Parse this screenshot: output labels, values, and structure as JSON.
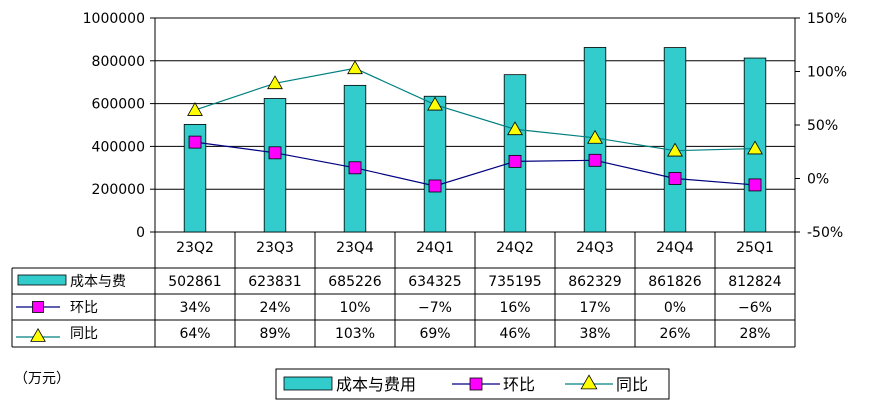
{
  "chart_data": {
    "type": "bar+line",
    "categories": [
      "23Q2",
      "23Q3",
      "23Q4",
      "24Q1",
      "24Q2",
      "24Q3",
      "24Q4",
      "25Q1"
    ],
    "unit_label": "（万元）",
    "y_left": {
      "min": 0,
      "max": 1000000,
      "step": 200000,
      "ticks": [
        "0",
        "200000",
        "400000",
        "600000",
        "800000",
        "1000000"
      ]
    },
    "y_right": {
      "min": -50,
      "max": 150,
      "step": 50,
      "ticks": [
        "-50%",
        "0%",
        "50%",
        "100%",
        "150%"
      ]
    },
    "grid": true,
    "legend_position": "bottom",
    "series": [
      {
        "name": "成本与费用",
        "table_label": "成本与费",
        "kind": "bar",
        "axis": "left",
        "color": "#33CCCC",
        "values": [
          502861,
          623831,
          685226,
          634325,
          735195,
          862329,
          861826,
          812824
        ],
        "labels": [
          "502861",
          "623831",
          "685226",
          "634325",
          "735195",
          "862329",
          "861826",
          "812824"
        ]
      },
      {
        "name": "环比",
        "table_label": "环比",
        "kind": "line",
        "axis": "right",
        "color": "#000080",
        "marker": "square",
        "marker_color": "#FF00FF",
        "values": [
          34,
          24,
          10,
          -7,
          16,
          17,
          0,
          -6
        ],
        "labels": [
          "34%",
          "24%",
          "10%",
          "−7%",
          "16%",
          "17%",
          "0%",
          "−6%"
        ]
      },
      {
        "name": "同比",
        "table_label": "同比",
        "kind": "line",
        "axis": "right",
        "color": "#008080",
        "marker": "triangle",
        "marker_color": "#FFFF00",
        "values": [
          64,
          89,
          103,
          69,
          46,
          38,
          26,
          28
        ],
        "labels": [
          "64%",
          "89%",
          "103%",
          "69%",
          "46%",
          "38%",
          "26%",
          "28%"
        ]
      }
    ]
  }
}
